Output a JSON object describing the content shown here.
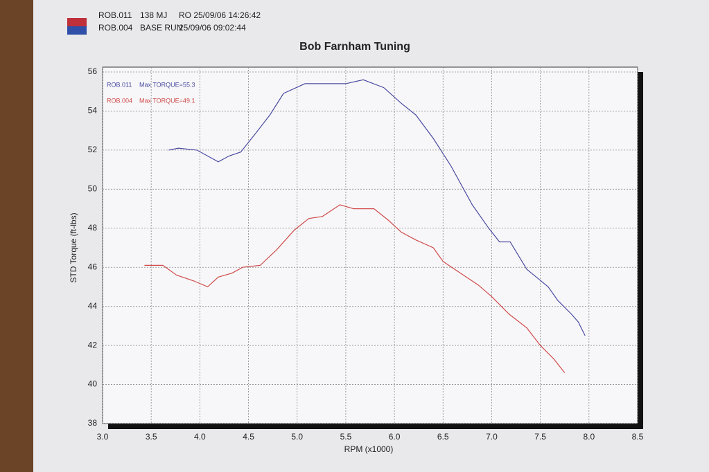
{
  "chart_data": {
    "type": "line",
    "title": "Bob Farnham Tuning",
    "header": [
      {
        "desc": "138 MJ",
        "info": "RO 25/09/06 14:26:42"
      },
      {
        "desc": "BASE RUN",
        "info": "25/09/06 09:02:44"
      }
    ],
    "x_label": "RPM (x1000)",
    "y_label": "STD Torque (ft-lbs)",
    "annotations": [
      "Max TORQUE=55.3",
      "Max TORQUE=49.1"
    ],
    "xlim": [
      3.0,
      8.5
    ],
    "xticks": [
      {
        "value": 3,
        "label": "3.0"
      },
      3.5,
      {
        "value": 4,
        "label": "4.0"
      },
      4.5,
      {
        "value": 5,
        "label": "5.0"
      },
      5.5,
      {
        "value": 6,
        "label": "6.0"
      },
      6.5,
      {
        "value": 7,
        "label": "7.0"
      },
      7.5,
      {
        "value": 8,
        "label": "8.0"
      },
      8.5
    ],
    "ylim": [
      38,
      56
    ],
    "yticks": [
      38,
      40,
      42,
      44,
      46,
      48,
      50,
      52,
      54,
      56
    ],
    "grid": true,
    "series": [
      {
        "name": "ROB.011",
        "color": "#4a4aa0",
        "x": [
          3.68,
          3.78,
          3.97,
          4.08,
          4.19,
          4.3,
          4.42,
          4.58,
          4.72,
          4.86,
          5.08,
          5.29,
          5.5,
          5.68,
          5.89,
          6.07,
          6.22,
          6.4,
          6.58,
          6.8,
          6.97,
          7.08,
          7.19,
          7.36,
          7.58,
          7.68,
          7.82,
          7.89,
          7.96
        ],
        "values": [
          52.0,
          52.1,
          52.0,
          51.7,
          51.4,
          51.7,
          51.9,
          52.9,
          53.8,
          54.9,
          55.4,
          55.4,
          55.4,
          55.6,
          55.2,
          54.4,
          53.8,
          52.6,
          51.2,
          49.2,
          48.0,
          47.3,
          47.3,
          45.9,
          45.0,
          44.3,
          43.6,
          43.2,
          42.5
        ]
      },
      {
        "name": "ROB.004",
        "color": "#d04a4a",
        "x": [
          3.43,
          3.62,
          3.76,
          3.94,
          4.08,
          4.19,
          4.33,
          4.44,
          4.62,
          4.79,
          4.97,
          5.12,
          5.26,
          5.44,
          5.58,
          5.79,
          5.94,
          6.07,
          6.22,
          6.4,
          6.5,
          6.68,
          6.86,
          7.0,
          7.18,
          7.36,
          7.5,
          7.64,
          7.75
        ],
        "values": [
          46.1,
          46.1,
          45.6,
          45.3,
          45.0,
          45.5,
          45.7,
          46.0,
          46.1,
          46.9,
          47.9,
          48.5,
          48.6,
          49.2,
          49.0,
          49.0,
          48.4,
          47.8,
          47.4,
          47.0,
          46.3,
          45.7,
          45.1,
          44.5,
          43.6,
          42.9,
          42.0,
          41.3,
          40.6
        ]
      }
    ]
  }
}
